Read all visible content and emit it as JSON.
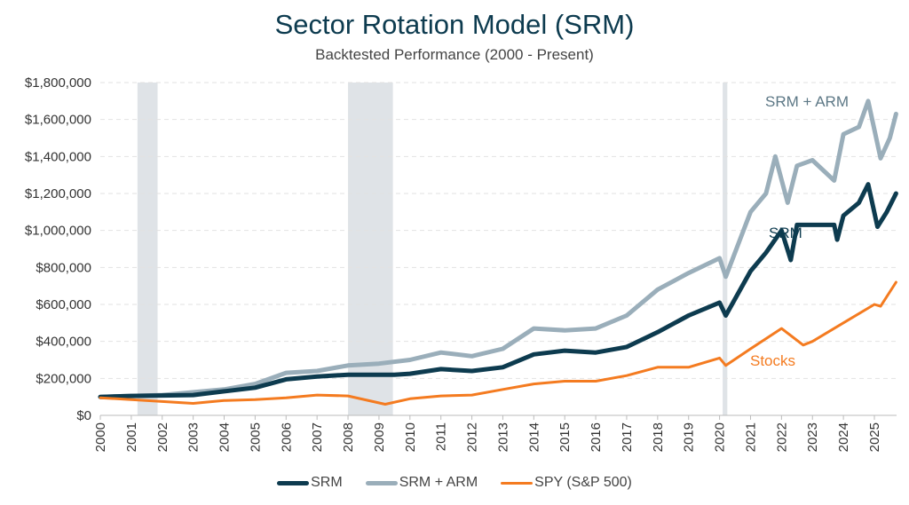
{
  "chart_data": {
    "type": "line",
    "title": "Sector Rotation Model (SRM)",
    "subtitle": "Backtested Performance (2000 - Present)",
    "xlabel": "",
    "ylabel": "",
    "xlim": [
      2000,
      2025.8
    ],
    "ylim": [
      0,
      1800000
    ],
    "x_ticks": [
      "2000",
      "2001",
      "2002",
      "2003",
      "2004",
      "2005",
      "2006",
      "2007",
      "2008",
      "2009",
      "2010",
      "2011",
      "2012",
      "2013",
      "2014",
      "2015",
      "2016",
      "2017",
      "2018",
      "2019",
      "2020",
      "2021",
      "2022",
      "2023",
      "2024",
      "2025"
    ],
    "y_ticks": [
      "$0",
      "$200,000",
      "$400,000",
      "$600,000",
      "$800,000",
      "$1,000,000",
      "$1,200,000",
      "$1,400,000",
      "$1,600,000",
      "$1,800,000"
    ],
    "grid": "horizontal dashed",
    "legend_position": "bottom",
    "shaded_periods": [
      [
        2001.2,
        2001.85
      ],
      [
        2008.0,
        2009.45
      ],
      [
        2020.1,
        2020.25
      ]
    ],
    "series": [
      {
        "name": "SRM",
        "color": "#0d3b4f",
        "label": "SRM",
        "x": [
          2000,
          2001,
          2003,
          2004,
          2005,
          2006,
          2007,
          2008,
          2009.5,
          2010,
          2011,
          2012,
          2013,
          2014,
          2015,
          2016,
          2017,
          2018,
          2019,
          2020,
          2020.2,
          2021,
          2021.5,
          2022,
          2022.3,
          2022.5,
          2023.7,
          2023.8,
          2024,
          2024.5,
          2024.8,
          2025.1,
          2025.4,
          2025.7
        ],
        "y": [
          100000,
          105000,
          110000,
          130000,
          150000,
          195000,
          210000,
          220000,
          220000,
          225000,
          250000,
          240000,
          260000,
          330000,
          350000,
          340000,
          370000,
          450000,
          540000,
          610000,
          540000,
          780000,
          880000,
          1000000,
          840000,
          1030000,
          1030000,
          950000,
          1080000,
          1150000,
          1250000,
          1020000,
          1100000,
          1200000
        ]
      },
      {
        "name": "SRM + ARM",
        "color": "#9aaeba",
        "label": "SRM + ARM",
        "x": [
          2000,
          2002,
          2004,
          2005,
          2006,
          2007,
          2008,
          2009,
          2010,
          2011,
          2012,
          2013,
          2014,
          2015,
          2016,
          2017,
          2018,
          2019,
          2020,
          2020.2,
          2021,
          2021.5,
          2021.8,
          2022.2,
          2022.5,
          2023,
          2023.7,
          2024,
          2024.5,
          2024.8,
          2025.2,
          2025.5,
          2025.7
        ],
        "y": [
          100000,
          110000,
          140000,
          170000,
          230000,
          240000,
          270000,
          280000,
          300000,
          340000,
          320000,
          360000,
          470000,
          460000,
          470000,
          540000,
          680000,
          770000,
          850000,
          750000,
          1100000,
          1200000,
          1400000,
          1150000,
          1350000,
          1380000,
          1270000,
          1520000,
          1560000,
          1700000,
          1390000,
          1500000,
          1630000
        ]
      },
      {
        "name": "SPY (S&P 500)",
        "color": "#f47b20",
        "label": "Stocks",
        "x": [
          2000,
          2001,
          2002,
          2003,
          2004,
          2005,
          2006,
          2007,
          2008,
          2009.2,
          2010,
          2011,
          2012,
          2013,
          2014,
          2015,
          2016,
          2017,
          2018,
          2019,
          2020,
          2020.2,
          2021,
          2022,
          2022.7,
          2023,
          2024,
          2025,
          2025.2,
          2025.7
        ],
        "y": [
          95000,
          85000,
          75000,
          65000,
          80000,
          85000,
          95000,
          110000,
          105000,
          60000,
          90000,
          105000,
          110000,
          140000,
          170000,
          185000,
          185000,
          215000,
          260000,
          260000,
          310000,
          270000,
          360000,
          470000,
          380000,
          400000,
          500000,
          600000,
          590000,
          720000
        ]
      }
    ]
  }
}
